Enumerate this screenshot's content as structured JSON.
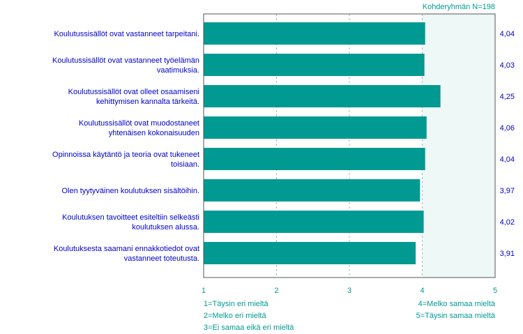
{
  "chart_data": {
    "type": "bar",
    "orientation": "horizontal",
    "header": "Kohderyhmän N=198",
    "categories": [
      [
        "Koulutussisällöt ovat vastanneet tarpeitani."
      ],
      [
        "Koulutussisällöt ovat vastanneet työelämän",
        "vaatimuksia."
      ],
      [
        "Koulutussisällöt ovat olleet osaamiseni",
        "kehittymisen kannalta tärkeitä."
      ],
      [
        "Koulutussisällöt ovat muodostaneet",
        "yhtenäisen kokonaisuuden"
      ],
      [
        "Opinnoissa käytäntö ja teoria ovat tukeneet",
        "toisiaan."
      ],
      [
        "Olen tyytyväinen koulutuksen sisältöihin."
      ],
      [
        "Koulutuksen tavoitteet esiteltiin selkeästi",
        "koulutuksen alussa."
      ],
      [
        "Koulutuksesta saamani ennakkotiedot ovat",
        "vastanneet toteutusta."
      ]
    ],
    "values": [
      4.04,
      4.03,
      4.25,
      4.06,
      4.04,
      3.97,
      4.02,
      3.91
    ],
    "value_labels": [
      "4,04",
      "4,03",
      "4,25",
      "4,06",
      "4,04",
      "3,97",
      "4,02",
      "3,91"
    ],
    "xlim": [
      1,
      5
    ],
    "xticks": [
      "1",
      "2",
      "3",
      "4",
      "5"
    ],
    "highlight_from": 4,
    "grid": "vertical dashed",
    "scale_legend": {
      "left": [
        "1=Täysin eri mieltä",
        "2=Melko eri mieltä",
        "3=Ei samaa eikä eri mieltä"
      ],
      "right": [
        "4=Melko samaa mieltä",
        "5=Täysin samaa mieltä"
      ]
    },
    "colors": {
      "bar": "#009a93",
      "text": "#0000cc",
      "axis_text": "#009a93",
      "frame": "#555555",
      "grid": "#99bbbb",
      "highlight_bg": "#eef8f7"
    }
  }
}
